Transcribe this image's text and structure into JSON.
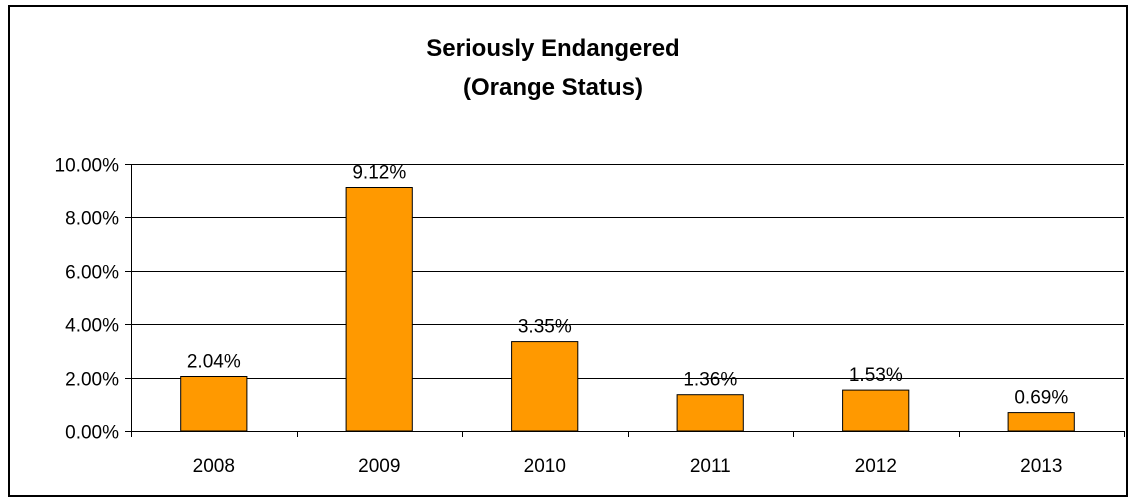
{
  "chart_data": {
    "type": "bar",
    "title": [
      "Seriously Endangered",
      "(Orange Status)"
    ],
    "categories": [
      "2008",
      "2009",
      "2010",
      "2011",
      "2012",
      "2013"
    ],
    "values": [
      2.04,
      9.12,
      3.35,
      1.36,
      1.53,
      0.69
    ],
    "data_labels": [
      "2.04%",
      "9.12%",
      "3.35%",
      "1.36%",
      "1.53%",
      "0.69%"
    ],
    "y_ticks": [
      {
        "value": 0,
        "label": "0.00%"
      },
      {
        "value": 2,
        "label": "2.00%"
      },
      {
        "value": 4,
        "label": "4.00%"
      },
      {
        "value": 6,
        "label": "6.00%"
      },
      {
        "value": 8,
        "label": "8.00%"
      },
      {
        "value": 10,
        "label": "10.00%"
      }
    ],
    "ylim": [
      0,
      10
    ],
    "xlabel": "",
    "ylabel": "",
    "grid": true,
    "legend": "none",
    "colors": {
      "bar_fill": "#FF9900",
      "bar_stroke": "#000000",
      "gridline": "#000000",
      "axis": "#000000"
    }
  }
}
